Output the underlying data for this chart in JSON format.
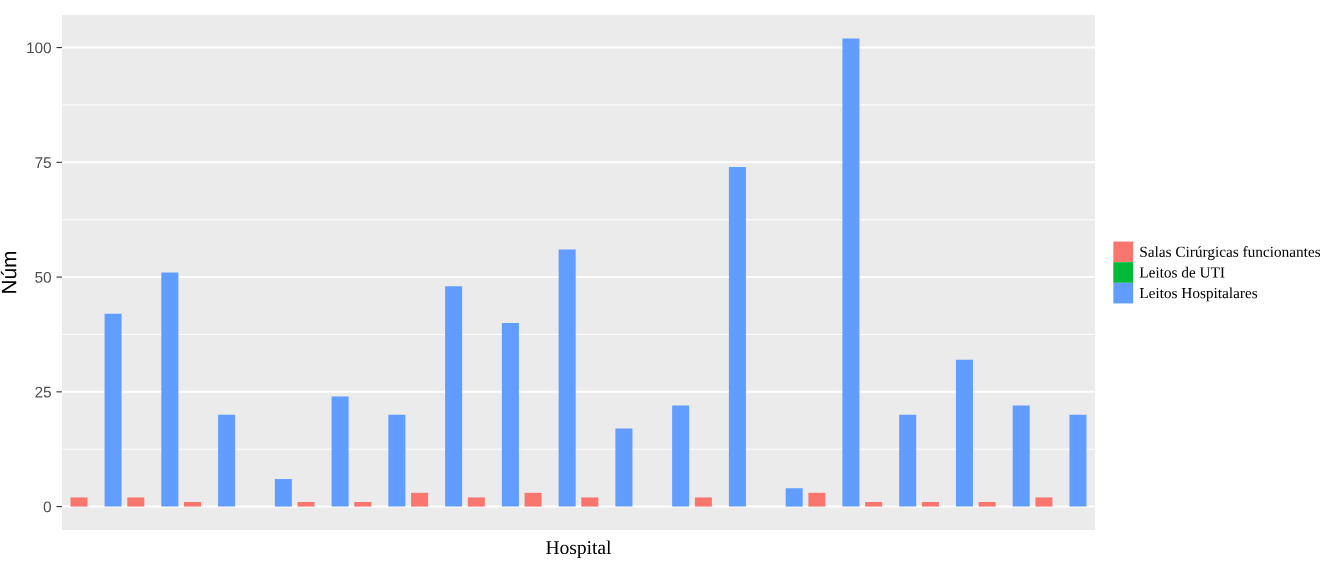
{
  "chart_data": {
    "type": "bar",
    "xlabel": "Hospital",
    "ylabel": "Núm",
    "categories": [
      null,
      null,
      null,
      null,
      null,
      null,
      null,
      null,
      null,
      null,
      null,
      null,
      null,
      null,
      null,
      null,
      null,
      null
    ],
    "series": [
      {
        "name": "Salas Cirúrgicas funcionantes",
        "color": "#f8766d",
        "values": [
          2,
          2,
          1,
          0,
          1,
          1,
          3,
          2,
          3,
          2,
          0,
          2,
          0,
          3,
          1,
          1,
          1,
          2
        ]
      },
      {
        "name": "Leitos de UTI",
        "color": "#00ba38",
        "values": [
          0,
          0,
          0,
          0,
          0,
          0,
          0,
          0,
          0,
          0,
          0,
          0,
          0,
          0,
          0,
          0,
          0,
          0
        ]
      },
      {
        "name": "Leitos Hospitalares",
        "color": "#619cff",
        "values": [
          42,
          51,
          20,
          6,
          24,
          20,
          48,
          40,
          56,
          17,
          22,
          74,
          4,
          102,
          20,
          32,
          22,
          20
        ]
      }
    ],
    "ylim": [
      -5.1,
      107.1
    ],
    "yticks": [
      0,
      25,
      50,
      75,
      100
    ],
    "grid": "y",
    "legend": "right"
  }
}
